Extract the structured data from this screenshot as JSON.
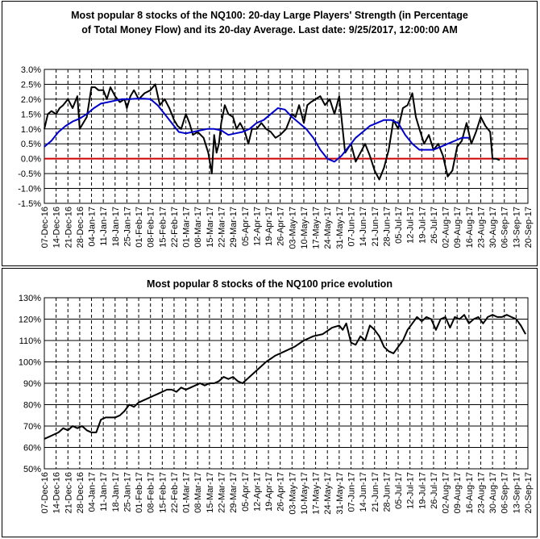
{
  "chart_data": [
    {
      "type": "line",
      "title_line1": "Most popular 8 stocks of the NQ100: 20-day Large Players' Strength (in Percentage",
      "title_line2": "of Total Money Flow) and its 20-day Average. Last date: 9/25/2017, 12:00:00 AM",
      "xlabel": "",
      "ylabel": "",
      "ylim": [
        -1.5,
        3.0
      ],
      "ytick_step": 0.5,
      "y_format": "percent1",
      "grid": true,
      "categories": [
        "07-Dec-16",
        "14-Dec-16",
        "21-Dec-16",
        "28-Dec-16",
        "04-Jan-17",
        "11-Jan-17",
        "18-Jan-17",
        "25-Jan-17",
        "01-Feb-17",
        "08-Feb-17",
        "15-Feb-17",
        "22-Feb-17",
        "01-Mar-17",
        "08-Mar-17",
        "15-Mar-17",
        "22-Mar-17",
        "29-Mar-17",
        "05-Apr-17",
        "12-Apr-17",
        "19-Apr-17",
        "26-Apr-17",
        "03-May-17",
        "10-May-17",
        "17-May-17",
        "24-May-17",
        "31-May-17",
        "07-Jun-17",
        "14-Jun-17",
        "21-Jun-17",
        "28-Jun-17",
        "05-Jul-17",
        "12-Jul-17",
        "19-Jul-17",
        "26-Jul-17",
        "02-Aug-17",
        "09-Aug-17",
        "16-Aug-17",
        "23-Aug-17",
        "30-Aug-17",
        "06-Sep-17",
        "13-Sep-17",
        "20-Sep-17"
      ],
      "series": [
        {
          "color": "#000000",
          "values": [
            1.0,
            1.5,
            1.6,
            1.5,
            1.7,
            1.8,
            2.0,
            1.7,
            2.1,
            1.0,
            1.2,
            1.4,
            2.4,
            2.4,
            2.3,
            2.3,
            2.0,
            2.4,
            2.1,
            1.9,
            2.0,
            1.7,
            2.1,
            2.3,
            2.0,
            2.2,
            2.3,
            2.5,
            1.8,
            2.0,
            1.7,
            1.3,
            1.1,
            1.0,
            1.5,
            1.2,
            0.8,
            0.9,
            0.7,
            0.2,
            -0.5,
            0.8,
            0.2,
            0.5,
            1.2,
            1.8,
            1.5,
            1.4,
            1.0,
            1.2,
            0.9,
            0.5,
            1.0,
            1.0,
            1.2,
            1.0,
            0.9,
            0.7,
            0.8,
            1.0,
            1.5,
            1.4,
            1.8,
            1.2,
            1.8,
            1.9,
            2.0,
            2.1,
            1.8,
            2.0,
            1.5,
            2.1,
            0.2,
            0.5,
            -0.1,
            0.2,
            0.5,
            0.1,
            -0.4,
            -0.7,
            -0.3,
            0.3,
            1.3,
            1.0,
            1.7,
            1.8,
            2.2,
            1.4,
            1.0,
            0.5,
            0.8,
            0.3,
            0.5,
            0.1,
            -0.6,
            -0.4,
            0.4,
            0.6,
            1.2,
            0.5,
            0.9,
            1.4,
            1.1,
            0.9,
            0.0,
            0.0,
            -0.05
          ],
          "x": [
            0.0,
            0.3,
            0.6,
            1.0,
            1.3,
            1.6,
            2.0,
            2.4,
            2.8,
            3.0,
            3.3,
            3.6,
            4.0,
            4.3,
            4.6,
            5.0,
            5.3,
            5.6,
            6.0,
            6.4,
            6.8,
            7.0,
            7.3,
            7.6,
            8.0,
            8.5,
            9.0,
            9.4,
            9.8,
            10.2,
            10.6,
            11.0,
            11.3,
            11.6,
            12.0,
            12.3,
            12.6,
            13.0,
            13.5,
            13.9,
            14.2,
            14.4,
            14.6,
            14.8,
            15.0,
            15.3,
            15.6,
            16.0,
            16.3,
            16.6,
            17.0,
            17.3,
            17.6,
            18.0,
            18.4,
            18.8,
            19.2,
            19.6,
            20.0,
            20.5,
            21.0,
            21.3,
            21.6,
            22.0,
            22.3,
            22.6,
            23.0,
            23.4,
            23.8,
            24.2,
            24.6,
            25.0,
            25.5,
            26.0,
            26.4,
            26.8,
            27.2,
            27.6,
            28.0,
            28.4,
            28.8,
            29.2,
            29.6,
            30.0,
            30.4,
            30.8,
            31.2,
            31.5,
            31.8,
            32.2,
            32.6,
            33.0,
            33.4,
            33.8,
            34.2,
            34.6,
            35.0,
            35.4,
            35.8,
            36.2,
            36.6,
            37.0,
            37.4,
            37.8,
            38.0,
            38.3,
            38.6
          ]
        },
        {
          "color": "#0000cc",
          "values": [
            0.4,
            0.6,
            0.9,
            1.1,
            1.25,
            1.35,
            1.5,
            1.7,
            1.85,
            1.9,
            1.95,
            2.0,
            2.0,
            2.02,
            2.02,
            2.0,
            1.8,
            1.5,
            1.2,
            0.9,
            0.85,
            0.9,
            0.95,
            1.0,
            1.0,
            0.95,
            0.8,
            0.85,
            0.9,
            1.0,
            1.2,
            1.3,
            1.5,
            1.7,
            1.65,
            1.4,
            1.2,
            1.0,
            0.7,
            0.3,
            0.0,
            -0.1,
            0.1,
            0.4,
            0.7,
            0.9,
            1.1,
            1.2,
            1.3,
            1.3,
            1.2,
            0.8,
            0.5,
            0.3,
            0.3,
            0.3,
            0.4,
            0.5,
            0.6,
            0.7,
            0.7
          ],
          "x": [
            0.0,
            0.6,
            1.2,
            1.8,
            2.4,
            3.0,
            3.6,
            4.2,
            4.8,
            5.4,
            6.0,
            6.6,
            7.2,
            7.8,
            8.4,
            9.0,
            9.6,
            10.2,
            10.8,
            11.4,
            12.0,
            12.6,
            13.2,
            13.8,
            14.4,
            15.0,
            15.6,
            16.2,
            16.8,
            17.4,
            18.0,
            18.6,
            19.2,
            19.8,
            20.4,
            21.0,
            21.6,
            22.2,
            22.8,
            23.4,
            24.0,
            24.6,
            25.2,
            25.8,
            26.4,
            27.0,
            27.6,
            28.2,
            28.8,
            29.4,
            30.0,
            30.6,
            31.2,
            31.8,
            32.4,
            33.0,
            33.6,
            34.2,
            34.8,
            35.4,
            36.0
          ]
        }
      ],
      "zero_line_color": "#cc0000"
    },
    {
      "type": "line",
      "title": "Most popular 8 stocks of the NQ100 price evolution",
      "xlabel": "",
      "ylabel": "",
      "ylim": [
        50,
        130
      ],
      "ytick_step": 10,
      "y_format": "percent0",
      "grid": true,
      "categories": [
        "07-Dec-16",
        "14-Dec-16",
        "21-Dec-16",
        "28-Dec-16",
        "04-Jan-17",
        "11-Jan-17",
        "18-Jan-17",
        "25-Jan-17",
        "01-Feb-17",
        "08-Feb-17",
        "15-Feb-17",
        "22-Feb-17",
        "01-Mar-17",
        "08-Mar-17",
        "15-Mar-17",
        "22-Mar-17",
        "29-Mar-17",
        "05-Apr-17",
        "12-Apr-17",
        "19-Apr-17",
        "26-Apr-17",
        "03-May-17",
        "10-May-17",
        "17-May-17",
        "24-May-17",
        "31-May-17",
        "07-Jun-17",
        "14-Jun-17",
        "21-Jun-17",
        "28-Jun-17",
        "05-Jul-17",
        "12-Jul-17",
        "19-Jul-17",
        "26-Jul-17",
        "02-Aug-17",
        "09-Aug-17",
        "16-Aug-17",
        "23-Aug-17",
        "30-Aug-17",
        "06-Sep-17",
        "13-Sep-17",
        "20-Sep-17"
      ],
      "series": [
        {
          "color": "#000000",
          "values": [
            64,
            65,
            66,
            67,
            69,
            68,
            70,
            69,
            70,
            68,
            67,
            67,
            73,
            74,
            74,
            74,
            75,
            77,
            80,
            79,
            81,
            82,
            83,
            84,
            85,
            86,
            87,
            87,
            86,
            88,
            87,
            88,
            89,
            90,
            89,
            90,
            90,
            91,
            93,
            92,
            93,
            91,
            90,
            92,
            96,
            100,
            103,
            105,
            107,
            110,
            112,
            113,
            116,
            117,
            115,
            118,
            109,
            108,
            112,
            110,
            117,
            115,
            112,
            107,
            105,
            104,
            107,
            110,
            115,
            118,
            121,
            119,
            121,
            120,
            115,
            120,
            121,
            116,
            121,
            120,
            122,
            118,
            120,
            121,
            118,
            121,
            122,
            121,
            121,
            122,
            121,
            120,
            117,
            113
          ],
          "x": [
            0.0,
            0.4,
            0.8,
            1.2,
            1.6,
            2.0,
            2.4,
            2.8,
            3.2,
            3.6,
            4.0,
            4.4,
            4.8,
            5.2,
            5.6,
            6.0,
            6.4,
            6.8,
            7.2,
            7.6,
            8.0,
            8.4,
            8.8,
            9.2,
            9.6,
            10.0,
            10.4,
            10.8,
            11.2,
            11.6,
            12.0,
            12.4,
            12.8,
            13.2,
            13.6,
            14.0,
            14.4,
            14.8,
            15.2,
            15.6,
            16.0,
            16.4,
            16.8,
            17.2,
            18.0,
            18.8,
            19.6,
            20.4,
            21.2,
            22.0,
            22.8,
            23.6,
            24.4,
            25.0,
            25.3,
            25.6,
            26.0,
            26.4,
            26.8,
            27.2,
            27.6,
            28.0,
            28.4,
            28.8,
            29.2,
            29.6,
            30.0,
            30.4,
            30.8,
            31.2,
            31.6,
            32.0,
            32.4,
            32.8,
            33.2,
            33.6,
            34.0,
            34.4,
            34.8,
            35.2,
            35.6,
            36.0,
            36.4,
            36.8,
            37.2,
            37.6,
            38.0,
            38.4,
            38.8,
            39.2,
            39.6,
            40.0,
            40.4,
            40.8
          ]
        }
      ]
    }
  ]
}
